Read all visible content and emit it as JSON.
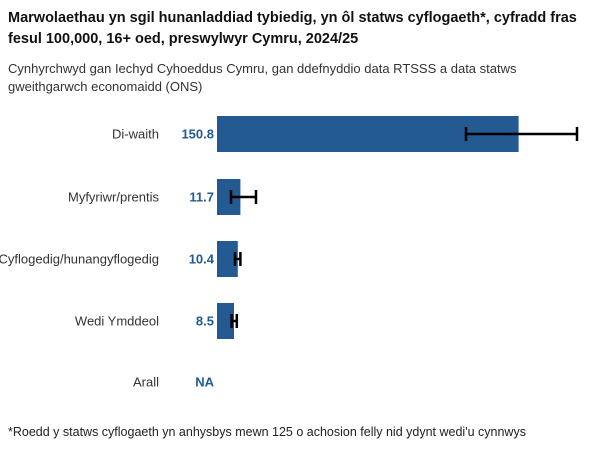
{
  "title": "Marwolaethau yn sgil hunanladdiad tybiedig, yn ôl statws cyflogaeth*, cyfradd fras fesul 100,000, 16+ oed, preswylwyr Cymru, 2024/25",
  "subtitle": "Cynhyrchwyd gan Iechyd Cyhoeddus Cymru, gan ddefnyddio data RTSSS a data statws gweithgarwch economaidd (ONS)",
  "footnote": "*Roedd y statws cyflogaeth yn anhysbys mewn 125 o achosion felly nid ydynt wedi'u cynnwys",
  "colors": {
    "bar": "#235a92",
    "value_label": "#235a92",
    "error_bar": "#000000"
  },
  "chart_data": {
    "type": "bar",
    "orientation": "horizontal",
    "categories": [
      "Di-waith",
      "Myfyriwr/prentis",
      "Cyflogedig/hunangyflogedig",
      "Wedi Ymddeol",
      "Arall"
    ],
    "values": [
      150.8,
      11.7,
      10.4,
      8.5,
      null
    ],
    "value_labels": [
      "150.8",
      "11.7",
      "10.4",
      "8.5",
      "NA"
    ],
    "error_low": [
      124.5,
      7.0,
      9.0,
      7.3,
      null
    ],
    "error_high": [
      180.0,
      19.5,
      11.7,
      9.9,
      null
    ],
    "xlim": [
      0,
      180
    ],
    "grid": false,
    "legend": "none"
  }
}
